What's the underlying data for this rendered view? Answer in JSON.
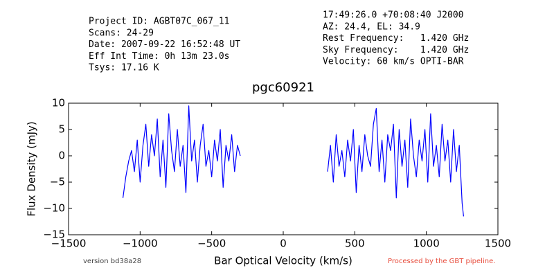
{
  "info": {
    "left": [
      "Project ID: AGBT07C_067_11",
      "Scans: 24-29",
      "Date: 2007-09-22 16:52:48 UT",
      "Eff Int Time: 0h 13m 23.0s",
      "Tsys: 17.16 K"
    ],
    "right": [
      "17:49:26.0 +70:08:40 J2000",
      "AZ: 24.4, EL: 34.9",
      "Rest Frequency:   1.420 GHz",
      "Sky Frequency:    1.420 GHz",
      "Velocity: 60 km/s OPTI-BAR"
    ]
  },
  "footer": {
    "version": "version bd38a28",
    "pipeline": "Processed by the GBT pipeline."
  },
  "chart_data": {
    "type": "line",
    "title": "pgc60921",
    "x_label": "Bar Optical Velocity (km/s)",
    "y_label": "Flux Density (mJy)",
    "color": "#0000ff",
    "x": [
      -1120,
      -1100,
      -1080,
      -1060,
      -1040,
      -1020,
      -1000,
      -980,
      -960,
      -940,
      -920,
      -900,
      -880,
      -860,
      -840,
      -820,
      -800,
      -780,
      -760,
      -740,
      -720,
      -700,
      -680,
      -660,
      -640,
      -620,
      -600,
      -580,
      -560,
      -540,
      -520,
      -500,
      -480,
      -460,
      -440,
      -420,
      -400,
      -380,
      -360,
      -340,
      -320,
      -300,
      null,
      310,
      330,
      350,
      370,
      390,
      410,
      430,
      450,
      470,
      490,
      510,
      530,
      550,
      570,
      590,
      610,
      630,
      650,
      670,
      690,
      710,
      730,
      750,
      770,
      790,
      810,
      830,
      850,
      870,
      890,
      910,
      930,
      950,
      970,
      990,
      1010,
      1030,
      1050,
      1070,
      1090,
      1110,
      1130,
      1150,
      1170,
      1190,
      1210,
      1230,
      1250,
      1260
    ],
    "values": [
      -8,
      -4,
      -1,
      1,
      -3,
      3,
      -5,
      2,
      6,
      -2,
      4,
      0,
      7,
      -4,
      3,
      -6,
      8,
      1,
      -3,
      5,
      -2,
      2,
      -7,
      9.5,
      -1,
      3,
      -5,
      2,
      6,
      -2,
      1,
      -4,
      3,
      -1,
      5,
      -6,
      2,
      -1,
      4,
      -3,
      2,
      0,
      null,
      -3,
      2,
      -5,
      4,
      -2,
      1,
      -4,
      3,
      -1,
      5,
      -7,
      2,
      -3,
      4,
      0,
      -2,
      6,
      9,
      -3,
      3,
      -5,
      4,
      1,
      6,
      -8,
      5,
      -2,
      3,
      -6,
      7,
      0,
      -4,
      3,
      -1,
      5,
      -5,
      8,
      -2,
      2,
      -4,
      6,
      -1,
      3,
      -5,
      5,
      -3,
      2,
      -9,
      -11.5
    ],
    "xlim": [
      -1500,
      1500
    ],
    "xticks": [
      {
        "value": -1500,
        "label": "−1500"
      },
      {
        "value": -1000,
        "label": "−1000"
      },
      {
        "value": -500,
        "label": "−500"
      },
      0,
      500,
      1000,
      1500
    ],
    "ylim": [
      -15,
      10
    ],
    "yticks": [
      10,
      5,
      0,
      {
        "value": -5,
        "label": "−5"
      },
      {
        "value": -10,
        "label": "−10"
      },
      {
        "value": -15,
        "label": "−15"
      }
    ]
  }
}
